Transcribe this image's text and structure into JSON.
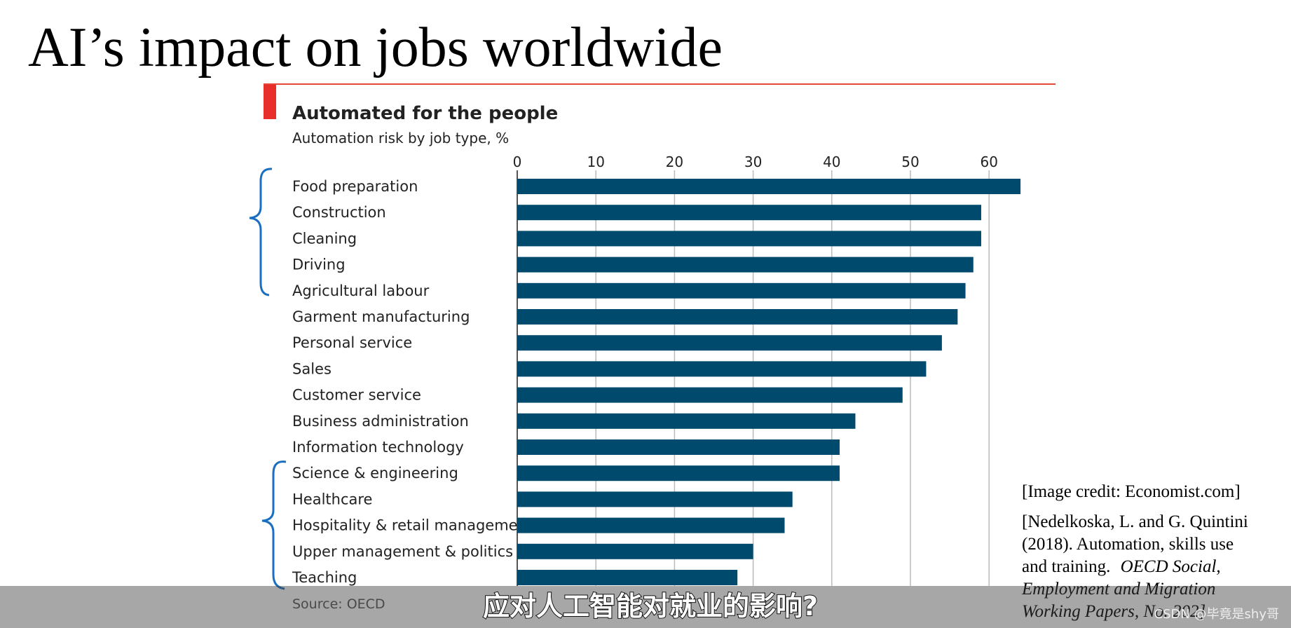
{
  "slide_title": "AI’s impact on jobs worldwide",
  "image_credit": "[Image credit: Economist.com]",
  "reference": [
    "[Nedelkoska, L. and G. Quintini",
    "(2018). Automation, skills use",
    "and training.",
    "OECD Social,",
    "Employment and Migration",
    "Working Papers, No. 202]"
  ],
  "video_subtitle": "应对人工智能对就业的影响?",
  "watermark": "CSDN @毕竟是shy哥",
  "chart_data": {
    "type": "hbar",
    "title": "Automated for the people",
    "subtitle": "Automation risk by job type, %",
    "source": "Source: OECD",
    "categories": [
      "Food preparation",
      "Construction",
      "Cleaning",
      "Driving",
      "Agricultural labour",
      "Garment manufacturing",
      "Personal service",
      "Sales",
      "Customer service",
      "Business administration",
      "Information technology",
      "Science & engineering",
      "Healthcare",
      "Hospitality & retail management",
      "Upper management & politics",
      "Teaching"
    ],
    "values": [
      64,
      59,
      59,
      58,
      57,
      56,
      54,
      52,
      49,
      43,
      41,
      41,
      35,
      34,
      30,
      28
    ],
    "color": "#004a6e",
    "xlim": [
      0,
      65
    ],
    "xticks": [
      0,
      10,
      20,
      30,
      40,
      50,
      60
    ],
    "grid": true
  }
}
